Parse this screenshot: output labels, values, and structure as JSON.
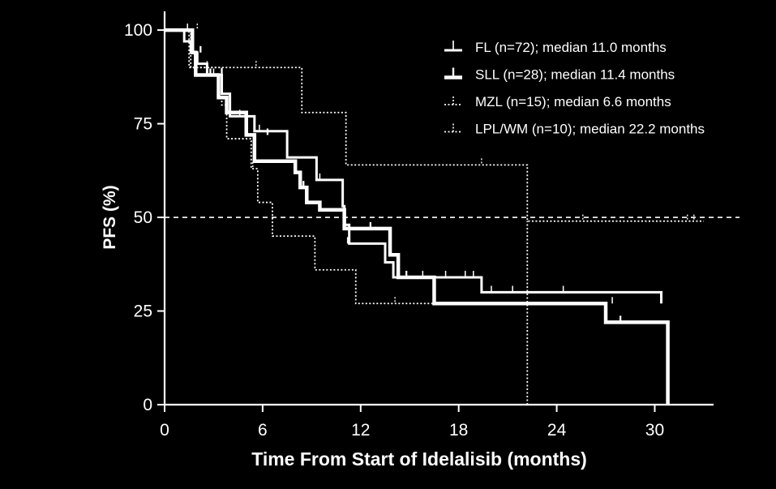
{
  "colors": {
    "background": "#000000",
    "foreground": "#ffffff"
  },
  "chart_data": {
    "type": "line",
    "title": "",
    "xlabel": "Time From Start of Idelalisib (months)",
    "ylabel": "PFS (%)",
    "xlim": [
      0,
      33.6
    ],
    "ylim": [
      0,
      105
    ],
    "xticks": [
      0,
      6,
      12,
      18,
      24,
      30
    ],
    "xtick_labels": [
      "0",
      "6",
      "12",
      "18",
      "24",
      "30"
    ],
    "yticks": [
      0,
      25,
      50,
      75,
      100
    ],
    "ytick_labels": [
      "0",
      "25",
      "50",
      "75",
      "100"
    ],
    "reference_line": {
      "y": 50,
      "style": "dashed"
    },
    "legend_position": "top-right",
    "series": [
      {
        "name": "FL (n=72); median 11.0 months",
        "style": "solid-thin",
        "steps": [
          [
            0,
            100
          ],
          [
            1.2,
            97
          ],
          [
            1.6,
            94
          ],
          [
            2.0,
            91
          ],
          [
            2.6,
            88
          ],
          [
            3.5,
            83
          ],
          [
            4.0,
            77
          ],
          [
            5.5,
            73
          ],
          [
            7.5,
            66
          ],
          [
            9.3,
            60
          ],
          [
            10.9,
            53
          ],
          [
            11.0,
            48
          ],
          [
            11.3,
            43
          ],
          [
            13.5,
            38
          ],
          [
            14.0,
            34
          ],
          [
            19.4,
            30
          ],
          [
            27.0,
            30
          ],
          [
            30.4,
            27
          ]
        ],
        "censors": [
          [
            1.4,
            100
          ],
          [
            3.0,
            88
          ],
          [
            4.6,
            77
          ],
          [
            5.8,
            73
          ],
          [
            9.5,
            60
          ],
          [
            11.2,
            43
          ],
          [
            15.8,
            34
          ],
          [
            17.2,
            34
          ],
          [
            18.4,
            34
          ],
          [
            18.9,
            34
          ],
          [
            20.0,
            30
          ],
          [
            21.3,
            30
          ],
          [
            24.4,
            30
          ],
          [
            27.4,
            27
          ]
        ]
      },
      {
        "name": "SLL (n=28); median 11.4 months",
        "style": "solid-thick",
        "steps": [
          [
            0,
            100
          ],
          [
            1.7,
            94
          ],
          [
            1.9,
            88
          ],
          [
            3.3,
            82
          ],
          [
            3.8,
            78
          ],
          [
            5.0,
            72
          ],
          [
            5.5,
            65
          ],
          [
            8.0,
            62
          ],
          [
            8.3,
            58
          ],
          [
            8.7,
            54
          ],
          [
            9.5,
            52
          ],
          [
            11.0,
            47
          ],
          [
            13.8,
            40
          ],
          [
            14.3,
            34
          ],
          [
            16.5,
            27
          ],
          [
            27.0,
            22
          ],
          [
            30.8,
            0
          ]
        ],
        "censors": [
          [
            2.2,
            94
          ],
          [
            2.8,
            88
          ],
          [
            3.5,
            88
          ],
          [
            6.3,
            72
          ],
          [
            8.5,
            58
          ],
          [
            12.6,
            47
          ],
          [
            14.8,
            34
          ],
          [
            27.9,
            22
          ]
        ]
      },
      {
        "name": "MZL (n=15); median 6.6 months",
        "style": "dotted",
        "steps": [
          [
            0,
            100
          ],
          [
            1.6,
            90
          ],
          [
            3.5,
            80
          ],
          [
            3.8,
            71
          ],
          [
            5.3,
            63
          ],
          [
            5.7,
            54
          ],
          [
            6.6,
            45
          ],
          [
            9.2,
            36
          ],
          [
            11.7,
            27
          ],
          [
            16.5,
            27
          ]
        ],
        "censors": [
          [
            2.6,
            90
          ],
          [
            5.4,
            63
          ],
          [
            14.1,
            27
          ]
        ]
      },
      {
        "name": "LPL/WM (n=10); median 22.2 months",
        "style": "dotted",
        "steps": [
          [
            0,
            100
          ],
          [
            1.5,
            90
          ],
          [
            8.4,
            78
          ],
          [
            11.1,
            64
          ],
          [
            22.2,
            49
          ],
          [
            33.0,
            49
          ]
        ],
        "censors": [
          [
            2.0,
            100
          ],
          [
            5.6,
            90
          ],
          [
            19.4,
            64
          ],
          [
            25.6,
            49
          ],
          [
            32.0,
            49
          ],
          [
            32.4,
            49
          ]
        ]
      }
    ],
    "median_markers": [
      {
        "series": "LPL/WM (n=10); median 22.2 months",
        "x": 22.2,
        "y_from": 0,
        "y_to": 49
      }
    ]
  }
}
